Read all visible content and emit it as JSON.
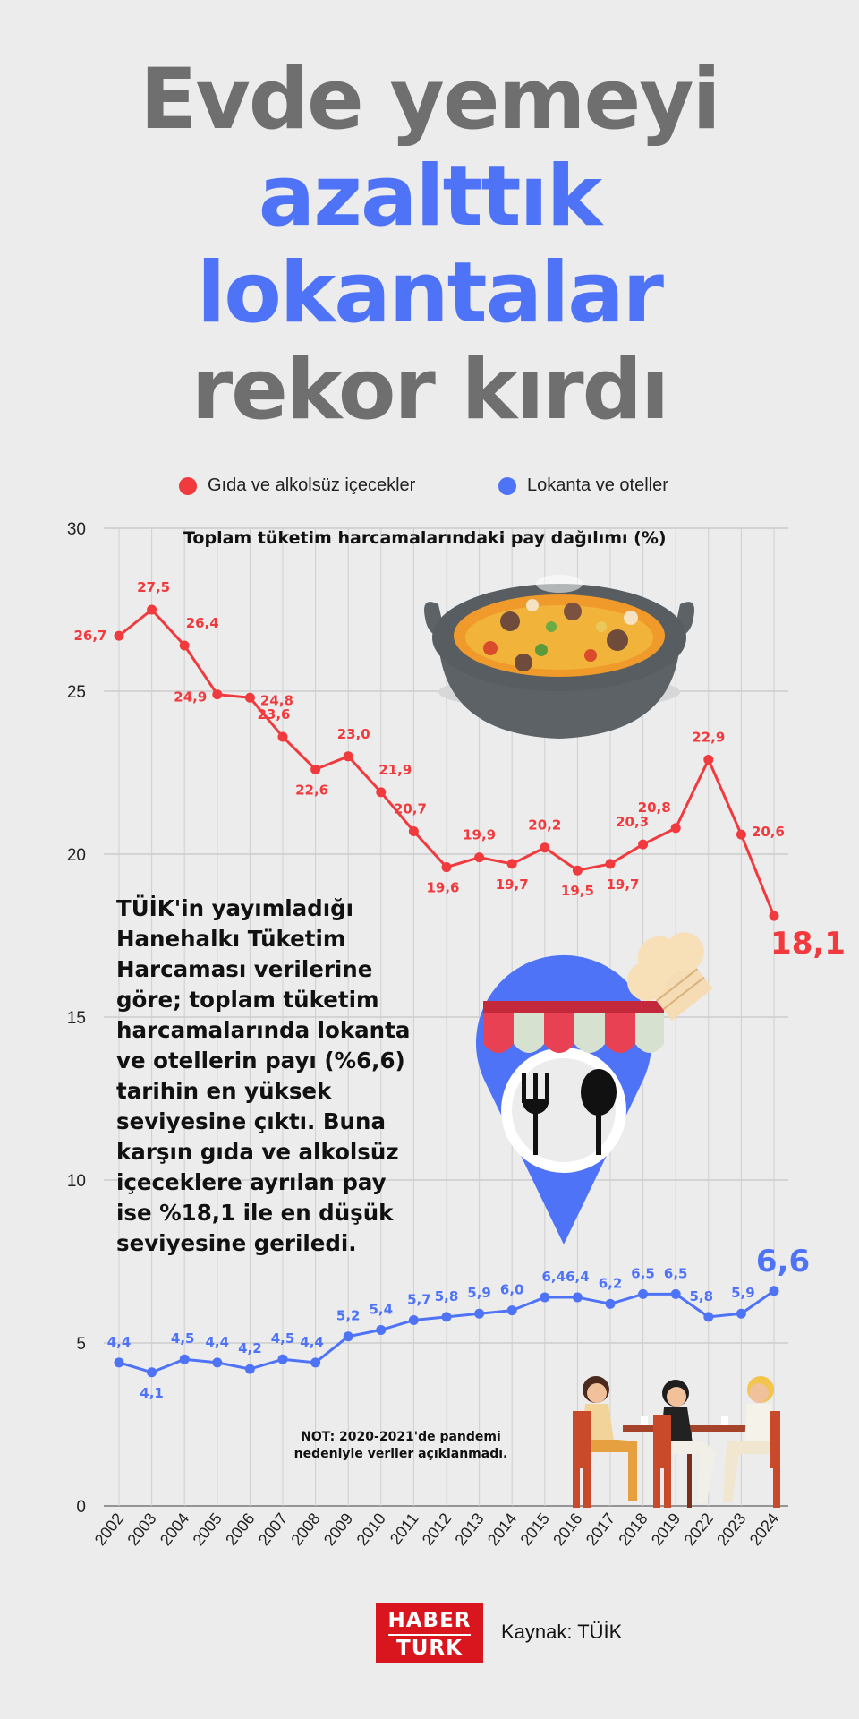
{
  "headline": {
    "line1": "Evde yemeyi",
    "line2": "azalttık",
    "line3": "lokantalar",
    "line4": "rekor kırdı"
  },
  "legend": [
    {
      "label": "Gıda ve alkolsüz içecekler",
      "color": "#f03a3e"
    },
    {
      "label": "Lokanta ve oteller",
      "color": "#4f73f7"
    }
  ],
  "body_text": "TÜİK'in yayımladığı Hanehalkı Tüketim Harcaması verilerine göre; toplam tüketim harcamalarında lokanta ve otellerin payı (%6,6) tarihin en yüksek seviyesine çıktı. Buna karşın gıda ve alkolsüz içeceklere ayrılan pay ise %18,1 ile en düşük seviyesine geriledi.",
  "note": "NOT: 2020-2021'de pandemi nedeniyle veriler açıklanmadı.",
  "logo": {
    "line1": "HABER",
    "line2": "TURK"
  },
  "source": "Kaynak: TÜİK",
  "icons": [
    "cooking-pot-icon",
    "restaurant-location-icon",
    "cafe-people-icon"
  ],
  "chart_data": {
    "type": "line",
    "title": "Toplam tüketim harcamalarındaki pay dağılımı (%)",
    "categories": [
      "2002",
      "2003",
      "2004",
      "2005",
      "2006",
      "2007",
      "2008",
      "2009",
      "2010",
      "2011",
      "2012",
      "2013",
      "2014",
      "2015",
      "2016",
      "2017",
      "2018",
      "2019",
      "2022",
      "2023",
      "2024"
    ],
    "y_ticks": [
      "0",
      "5",
      "10",
      "15",
      "20",
      "25",
      "30"
    ],
    "ylim": [
      0,
      30
    ],
    "grid": true,
    "legend_position": "top",
    "series": [
      {
        "name": "Gıda ve alkolsüz içecekler",
        "color": "#f03a3e",
        "values": [
          26.7,
          27.5,
          26.4,
          24.9,
          24.8,
          23.6,
          22.6,
          23.0,
          21.9,
          20.7,
          19.6,
          19.9,
          19.7,
          20.2,
          19.5,
          19.7,
          20.3,
          20.8,
          22.9,
          20.6,
          18.1
        ],
        "labels": [
          "26,7",
          "27,5",
          "26,4",
          "24,9",
          "24,8",
          "23,6",
          "22,6",
          "23,0",
          "21,9",
          "20,7",
          "19,6",
          "19,9",
          "19,7",
          "20,2",
          "19,5",
          "19,7",
          "20,3",
          "20,8",
          "22,9",
          "20,6",
          "18,1"
        ]
      },
      {
        "name": "Lokanta ve oteller",
        "color": "#4f73f7",
        "values": [
          4.4,
          4.1,
          4.5,
          4.4,
          4.2,
          4.5,
          4.4,
          5.2,
          5.4,
          5.7,
          5.8,
          5.9,
          6.0,
          6.4,
          6.4,
          6.2,
          6.5,
          6.5,
          5.8,
          5.9,
          6.6
        ],
        "labels": [
          "4,4",
          "4,1",
          "4,5",
          "4,4",
          "4,2",
          "4,5",
          "4,4",
          "5,2",
          "5,4",
          "5,7",
          "5,8",
          "5,9",
          "6,0",
          "6,4",
          "6,4",
          "6,2",
          "6,5",
          "6,5",
          "5,8",
          "5,9",
          "6,6"
        ]
      }
    ]
  }
}
